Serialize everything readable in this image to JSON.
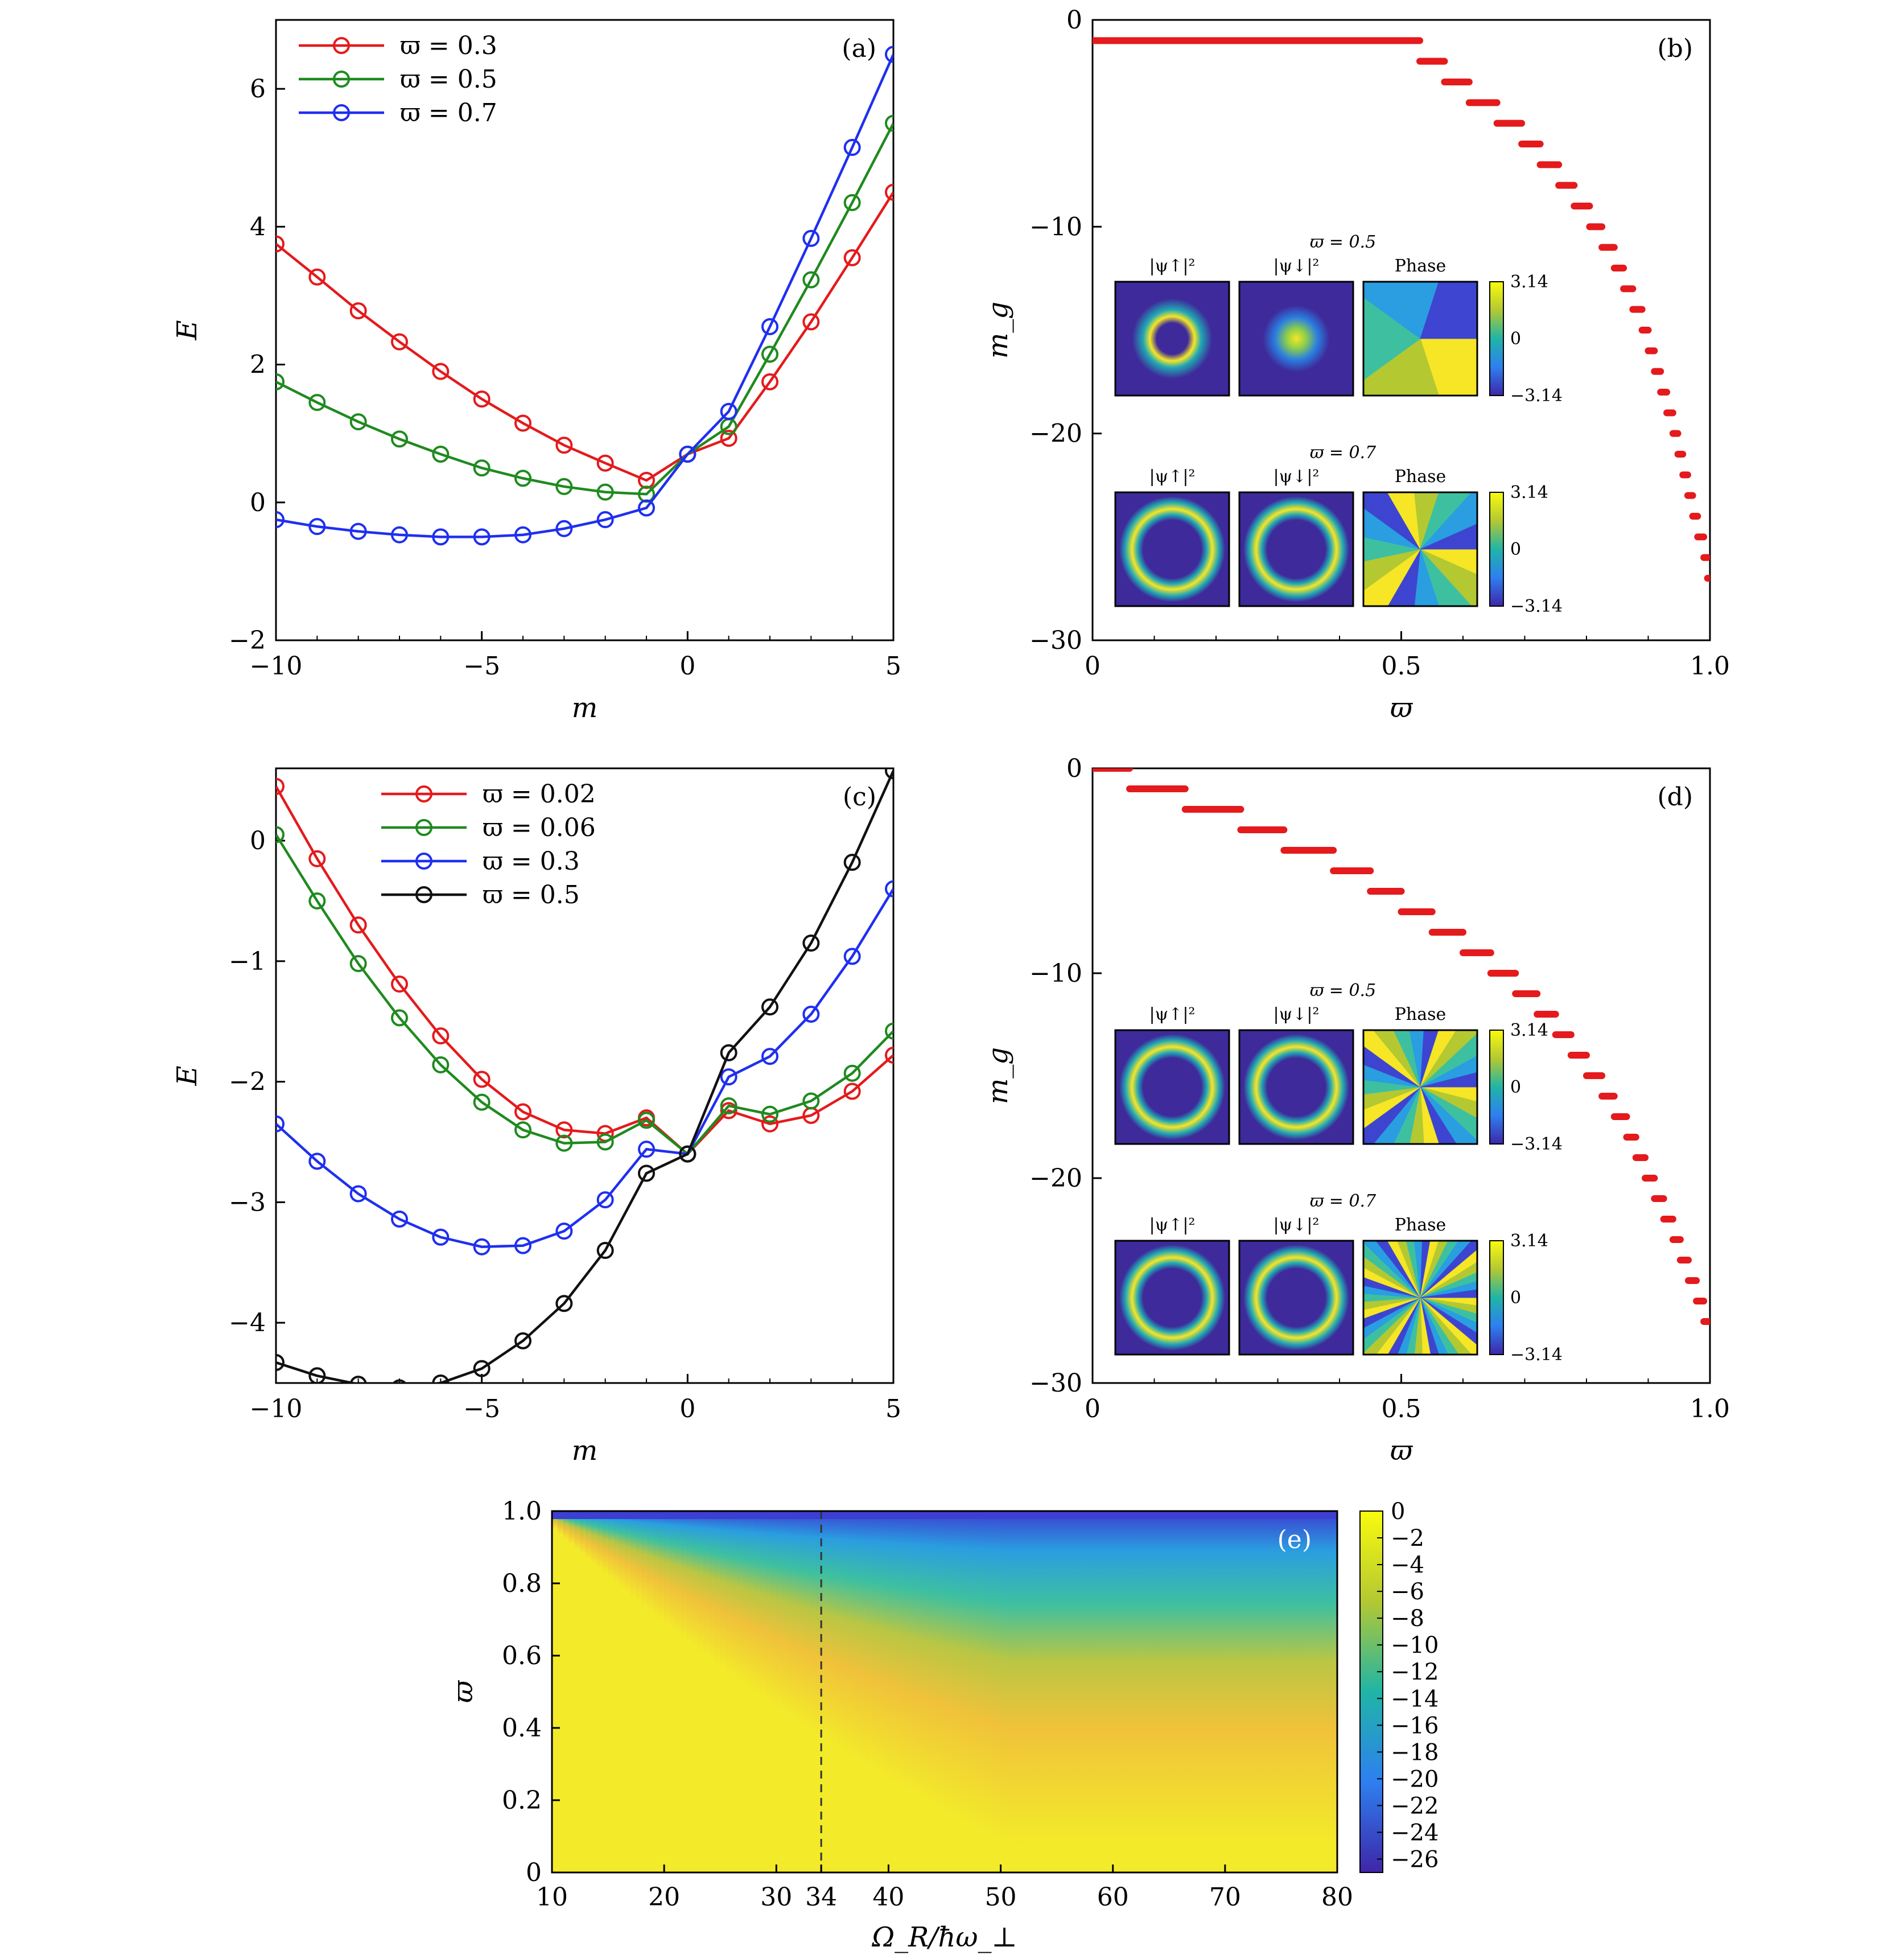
{
  "colors": {
    "red": "#e41a1c",
    "green": "#1f8a1f",
    "blue": "#1f2ff0",
    "black": "#111111",
    "viridis_low": "#3a2a9a",
    "viridis_mid": "#21a8b4",
    "viridis_high": "#f6e626"
  },
  "chart_data": [
    {
      "panel": "(a)",
      "type": "line",
      "xlabel": "m",
      "ylabel": "E",
      "xlim": [
        -10,
        5
      ],
      "ylim": [
        -2,
        7
      ],
      "xticks": [
        "−10",
        "−5",
        "0",
        "5"
      ],
      "yticks": [
        "−2",
        "0",
        "2",
        "4",
        "6"
      ],
      "legend_position": "top-left",
      "x": [
        -10,
        -9,
        -8,
        -7,
        -6,
        -5,
        -4,
        -3,
        -2,
        -1,
        0,
        1,
        2,
        3,
        4,
        5
      ],
      "series": [
        {
          "name": "ϖ = 0.3",
          "color": "red",
          "values": [
            3.75,
            3.27,
            2.78,
            2.33,
            1.9,
            1.5,
            1.15,
            0.83,
            0.57,
            0.32,
            0.7,
            0.93,
            1.75,
            2.62,
            3.55,
            4.5
          ]
        },
        {
          "name": "ϖ = 0.5",
          "color": "green",
          "values": [
            1.75,
            1.45,
            1.17,
            0.92,
            0.7,
            0.5,
            0.35,
            0.23,
            0.15,
            0.12,
            0.7,
            1.1,
            2.15,
            3.23,
            4.35,
            5.5
          ]
        },
        {
          "name": "ϖ = 0.7",
          "color": "blue",
          "values": [
            -0.25,
            -0.35,
            -0.42,
            -0.47,
            -0.5,
            -0.5,
            -0.47,
            -0.38,
            -0.25,
            -0.08,
            0.7,
            1.32,
            2.55,
            3.83,
            5.15,
            6.5
          ]
        }
      ]
    },
    {
      "panel": "(b)",
      "type": "scatter",
      "xlabel": "ϖ",
      "ylabel": "m_g",
      "xlim": [
        0,
        1
      ],
      "ylim": [
        -30,
        0
      ],
      "xticks": [
        "0",
        "0.5",
        "1.0"
      ],
      "yticks": [
        "0",
        "−10",
        "−20",
        "−30"
      ],
      "color": "red",
      "steps": [
        {
          "m": -1,
          "x_range": [
            0.0,
            0.53
          ]
        },
        {
          "m": -2,
          "x_range": [
            0.53,
            0.57
          ]
        },
        {
          "m": -3,
          "x_range": [
            0.57,
            0.61
          ]
        },
        {
          "m": -4,
          "x_range": [
            0.61,
            0.655
          ]
        },
        {
          "m": -5,
          "x_range": [
            0.655,
            0.695
          ]
        },
        {
          "m": -6,
          "x_range": [
            0.695,
            0.725
          ]
        },
        {
          "m": -7,
          "x_range": [
            0.725,
            0.755
          ]
        },
        {
          "m": -8,
          "x_range": [
            0.755,
            0.78
          ]
        },
        {
          "m": -9,
          "x_range": [
            0.78,
            0.805
          ]
        },
        {
          "m": -10,
          "x_range": [
            0.805,
            0.825
          ]
        },
        {
          "m": -11,
          "x_range": [
            0.825,
            0.845
          ]
        },
        {
          "m": -12,
          "x_range": [
            0.845,
            0.86
          ]
        },
        {
          "m": -13,
          "x_range": [
            0.86,
            0.875
          ]
        },
        {
          "m": -14,
          "x_range": [
            0.875,
            0.89
          ]
        },
        {
          "m": -15,
          "x_range": [
            0.89,
            0.9
          ]
        },
        {
          "m": -16,
          "x_range": [
            0.9,
            0.91
          ]
        },
        {
          "m": -17,
          "x_range": [
            0.91,
            0.92
          ]
        },
        {
          "m": -18,
          "x_range": [
            0.92,
            0.93
          ]
        },
        {
          "m": -19,
          "x_range": [
            0.93,
            0.94
          ]
        },
        {
          "m": -20,
          "x_range": [
            0.94,
            0.948
          ]
        },
        {
          "m": -21,
          "x_range": [
            0.948,
            0.956
          ]
        },
        {
          "m": -22,
          "x_range": [
            0.956,
            0.964
          ]
        },
        {
          "m": -23,
          "x_range": [
            0.964,
            0.972
          ]
        },
        {
          "m": -24,
          "x_range": [
            0.972,
            0.98
          ]
        },
        {
          "m": -25,
          "x_range": [
            0.98,
            0.99
          ]
        },
        {
          "m": -26,
          "x_range": [
            0.99,
            0.996
          ]
        },
        {
          "m": -27,
          "x_range": [
            0.996,
            1.0
          ]
        }
      ],
      "insets": [
        {
          "title": "ϖ = 0.5",
          "labels": [
            "|ψ↑|²",
            "|ψ↓|²",
            "Phase"
          ],
          "phase_arms": 1,
          "up": "thin-ring",
          "down": "blob",
          "colorbar": [
            "3.14",
            "0",
            "−3.14"
          ]
        },
        {
          "title": "ϖ = 0.7",
          "labels": [
            "|ψ↑|²",
            "|ψ↓|²",
            "Phase"
          ],
          "phase_arms": 3,
          "up": "ring",
          "down": "ring",
          "colorbar": [
            "3.14",
            "0",
            "−3.14"
          ]
        }
      ]
    },
    {
      "panel": "(c)",
      "type": "line",
      "xlabel": "m",
      "ylabel": "E",
      "xlim": [
        -10,
        5
      ],
      "ylim": [
        -4.5,
        0.6
      ],
      "xticks": [
        "−10",
        "−5",
        "0",
        "5"
      ],
      "yticks": [
        "−4",
        "−3",
        "−2",
        "−1",
        "0"
      ],
      "legend_position": "top-center",
      "x": [
        -10,
        -9,
        -8,
        -7,
        -6,
        -5,
        -4,
        -3,
        -2,
        -1,
        0,
        1,
        2,
        3,
        4,
        5
      ],
      "series": [
        {
          "name": "ϖ = 0.02",
          "color": "red",
          "values": [
            0.45,
            -0.15,
            -0.7,
            -1.19,
            -1.62,
            -1.98,
            -2.25,
            -2.4,
            -2.43,
            -2.3,
            -2.6,
            -2.24,
            -2.35,
            -2.28,
            -2.08,
            -1.78
          ]
        },
        {
          "name": "ϖ = 0.06",
          "color": "green",
          "values": [
            0.05,
            -0.5,
            -1.02,
            -1.47,
            -1.86,
            -2.17,
            -2.4,
            -2.51,
            -2.5,
            -2.32,
            -2.6,
            -2.2,
            -2.27,
            -2.16,
            -1.93,
            -1.58
          ]
        },
        {
          "name": "ϖ = 0.3",
          "color": "blue",
          "values": [
            -2.35,
            -2.66,
            -2.93,
            -3.14,
            -3.29,
            -3.37,
            -3.36,
            -3.24,
            -2.98,
            -2.56,
            -2.6,
            -1.96,
            -1.79,
            -1.44,
            -0.96,
            -0.4
          ]
        },
        {
          "name": "ϖ = 0.5",
          "color": "black",
          "values": [
            -4.33,
            -4.44,
            -4.51,
            -4.54,
            -4.5,
            -4.38,
            -4.15,
            -3.84,
            -3.4,
            -2.76,
            -2.6,
            -1.76,
            -1.38,
            -0.85,
            -0.18,
            0.58
          ]
        }
      ]
    },
    {
      "panel": "(d)",
      "type": "scatter",
      "xlabel": "ϖ",
      "ylabel": "m_g",
      "xlim": [
        0,
        1
      ],
      "ylim": [
        -30,
        0
      ],
      "xticks": [
        "0",
        "0.5",
        "1.0"
      ],
      "yticks": [
        "0",
        "−10",
        "−20",
        "−30"
      ],
      "color": "red",
      "steps": [
        {
          "m": 0,
          "x_range": [
            0.0,
            0.06
          ]
        },
        {
          "m": -1,
          "x_range": [
            0.06,
            0.15
          ]
        },
        {
          "m": -2,
          "x_range": [
            0.15,
            0.24
          ]
        },
        {
          "m": -3,
          "x_range": [
            0.24,
            0.31
          ]
        },
        {
          "m": -4,
          "x_range": [
            0.31,
            0.39
          ]
        },
        {
          "m": -5,
          "x_range": [
            0.39,
            0.45
          ]
        },
        {
          "m": -6,
          "x_range": [
            0.45,
            0.5
          ]
        },
        {
          "m": -7,
          "x_range": [
            0.5,
            0.55
          ]
        },
        {
          "m": -8,
          "x_range": [
            0.55,
            0.6
          ]
        },
        {
          "m": -9,
          "x_range": [
            0.6,
            0.645
          ]
        },
        {
          "m": -10,
          "x_range": [
            0.645,
            0.685
          ]
        },
        {
          "m": -11,
          "x_range": [
            0.685,
            0.72
          ]
        },
        {
          "m": -12,
          "x_range": [
            0.72,
            0.75
          ]
        },
        {
          "m": -13,
          "x_range": [
            0.75,
            0.775
          ]
        },
        {
          "m": -14,
          "x_range": [
            0.775,
            0.8
          ]
        },
        {
          "m": -15,
          "x_range": [
            0.8,
            0.825
          ]
        },
        {
          "m": -16,
          "x_range": [
            0.825,
            0.845
          ]
        },
        {
          "m": -17,
          "x_range": [
            0.845,
            0.865
          ]
        },
        {
          "m": -18,
          "x_range": [
            0.865,
            0.88
          ]
        },
        {
          "m": -19,
          "x_range": [
            0.88,
            0.895
          ]
        },
        {
          "m": -20,
          "x_range": [
            0.895,
            0.91
          ]
        },
        {
          "m": -21,
          "x_range": [
            0.91,
            0.925
          ]
        },
        {
          "m": -22,
          "x_range": [
            0.925,
            0.94
          ]
        },
        {
          "m": -23,
          "x_range": [
            0.94,
            0.952
          ]
        },
        {
          "m": -24,
          "x_range": [
            0.952,
            0.965
          ]
        },
        {
          "m": -25,
          "x_range": [
            0.965,
            0.978
          ]
        },
        {
          "m": -26,
          "x_range": [
            0.978,
            0.99
          ]
        },
        {
          "m": -27,
          "x_range": [
            0.99,
            1.0
          ]
        }
      ],
      "insets": [
        {
          "title": "ϖ = 0.5",
          "labels": [
            "|ψ↑|²",
            "|ψ↓|²",
            "Phase"
          ],
          "phase_arms": 5,
          "up": "ring",
          "down": "ring",
          "colorbar": [
            "3.14",
            "0",
            "−3.14"
          ]
        },
        {
          "title": "ϖ = 0.7",
          "labels": [
            "|ψ↑|²",
            "|ψ↓|²",
            "Phase"
          ],
          "phase_arms": 9,
          "up": "ring",
          "down": "ring",
          "colorbar": [
            "3.14",
            "0",
            "−3.14"
          ]
        }
      ]
    },
    {
      "panel": "(e)",
      "type": "heatmap",
      "xlabel": "Ω_R/ħω_⊥",
      "ylabel": "ϖ",
      "xlim": [
        10,
        80
      ],
      "ylim": [
        0,
        1
      ],
      "xticks": [
        "10",
        "20",
        "30",
        "34",
        "40",
        "50",
        "60",
        "70",
        "80"
      ],
      "yticks": [
        "0",
        "0.2",
        "0.4",
        "0.6",
        "0.8",
        "1.0"
      ],
      "marker_line_x": 34,
      "colorbar_ticks": [
        "0",
        "−2",
        "−4",
        "−6",
        "−8",
        "−10",
        "−12",
        "−14",
        "−16",
        "−18",
        "−20",
        "−22",
        "−24",
        "−26"
      ],
      "colorbar_range": [
        -27,
        0
      ]
    }
  ]
}
